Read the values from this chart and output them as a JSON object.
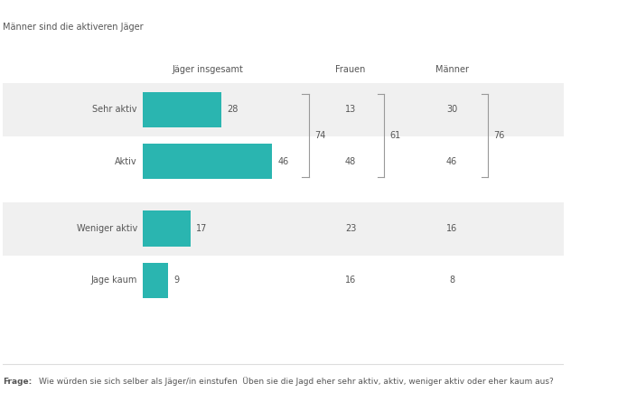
{
  "title": "Männer sind die aktiveren Jäger",
  "subtitle_col1": "Jäger insgesamt",
  "subtitle_col2": "Frauen",
  "subtitle_col3": "Männer",
  "categories": [
    "Sehr aktiv",
    "Aktiv",
    "Weniger aktiv",
    "Jage kaum"
  ],
  "values_gesamt": [
    28,
    46,
    17,
    9
  ],
  "values_frauen": [
    13,
    48,
    23,
    16
  ],
  "values_maenner": [
    30,
    46,
    16,
    8
  ],
  "bracket_gesamt": 74,
  "bracket_frauen": 61,
  "bracket_maenner": 76,
  "bar_color": "#2ab5b0",
  "background_stripe": "#f0f0f0",
  "frage_label": "Frage:",
  "frage_text": "Wie würden sie sich selber als Jäger/in einstufen  Üben sie die Jagd eher sehr aktiv, aktiv, weniger aktiv oder eher kaum aus?",
  "fig_width": 6.94,
  "fig_height": 4.45,
  "dpi": 100
}
